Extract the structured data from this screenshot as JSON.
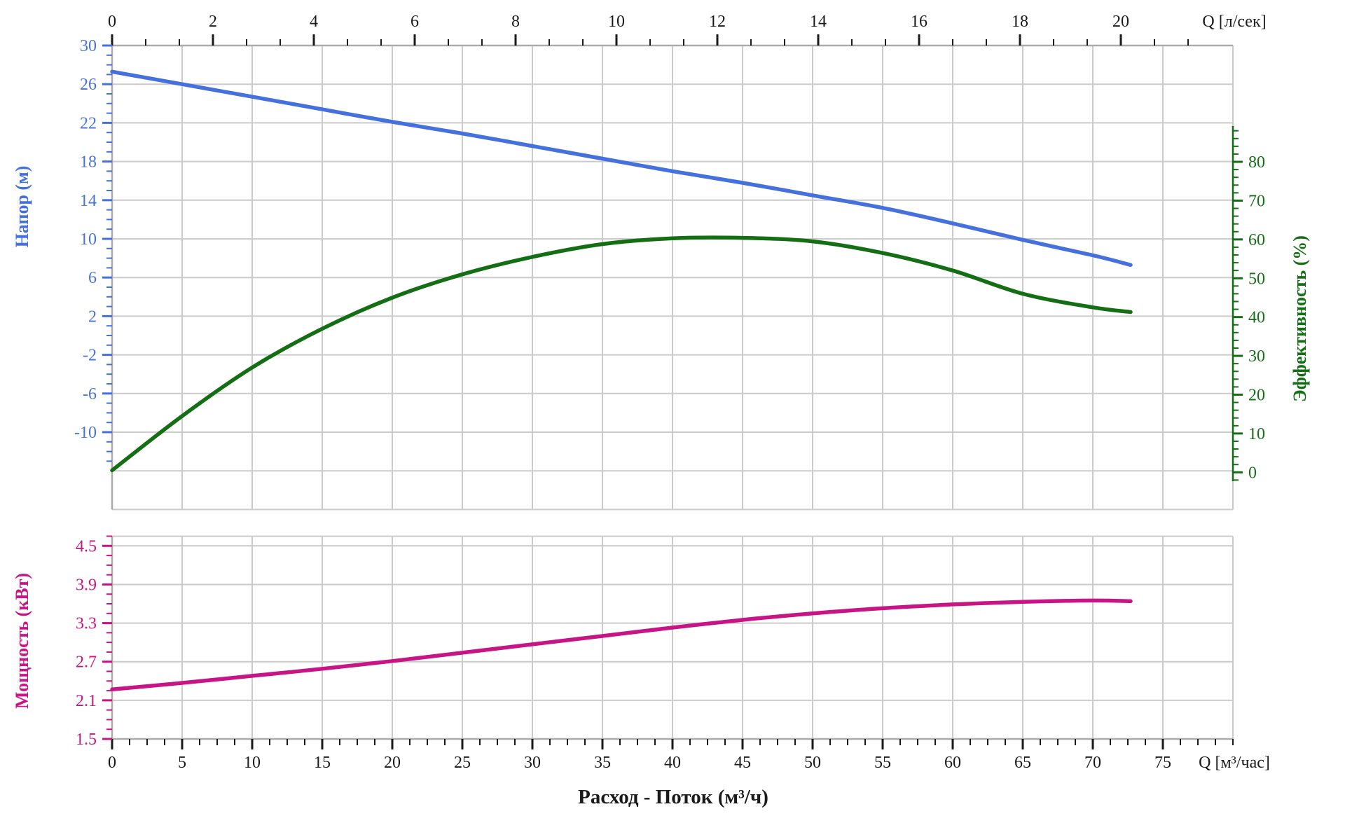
{
  "chart_data": {
    "type": "line",
    "title": "",
    "grid": "on",
    "legend": "none",
    "colors": {
      "head": "#4571DE",
      "efficiency": "#146E14",
      "power": "#C71585",
      "grid_line": "#CBCBCB",
      "spine": "#ABABAB",
      "axis_text": "#1A1A1A"
    },
    "top_axis": {
      "unit_label": "Q [л/сек]",
      "tick_labels": [
        "0",
        "2",
        "4",
        "6",
        "8",
        "10",
        "12",
        "14",
        "16",
        "18",
        "20"
      ]
    },
    "bottom_axis": {
      "unit_label": "Q [м³/час]",
      "title": "Расход - Поток (м³/ч)",
      "tick_labels": [
        "0",
        "5",
        "10",
        "15",
        "20",
        "25",
        "30",
        "35",
        "40",
        "45",
        "50",
        "55",
        "60",
        "65",
        "70",
        "75"
      ],
      "range": [
        0,
        80
      ]
    },
    "head_axis": {
      "title": "Напор (м)",
      "tick_labels": [
        "30",
        "26",
        "22",
        "18",
        "14",
        "10",
        "6",
        "2",
        "-2",
        "-6",
        "-10"
      ],
      "range": [
        -18,
        30
      ]
    },
    "efficiency_axis": {
      "title": "Эффективность (%)",
      "tick_labels": [
        "80",
        "70",
        "60",
        "50",
        "40",
        "30",
        "20",
        "10",
        "0"
      ],
      "range": [
        0,
        80
      ]
    },
    "power_axis": {
      "title": "Мощность (кВт)",
      "tick_labels": [
        "4.5",
        "3.9",
        "3.3",
        "2.7",
        "2.1",
        "1.5"
      ],
      "range": [
        1.5,
        4.65
      ]
    },
    "series": [
      {
        "name": "Напор",
        "axis": "head",
        "x_m3h": [
          0,
          5,
          10,
          15,
          20,
          25,
          30,
          35,
          40,
          45,
          50,
          55,
          60,
          65,
          70,
          72.7
        ],
        "y_m": [
          27.3,
          26.0,
          24.7,
          23.4,
          22.1,
          20.9,
          19.6,
          18.3,
          17.0,
          15.8,
          14.5,
          13.2,
          11.6,
          9.9,
          8.3,
          7.3
        ]
      },
      {
        "name": "Эффективность",
        "axis": "efficiency",
        "x_m3h": [
          0,
          5,
          10,
          15,
          20,
          25,
          30,
          35,
          40,
          45,
          50,
          55,
          60,
          65,
          70,
          72.7
        ],
        "y_pct": [
          0.5,
          14.5,
          27,
          37,
          45,
          51,
          55.5,
          58.8,
          60.3,
          60.4,
          59.5,
          56.5,
          52,
          46,
          42.5,
          41.3
        ]
      },
      {
        "name": "Мощность",
        "axis": "power",
        "x_m3h": [
          0,
          5,
          10,
          15,
          20,
          25,
          30,
          35,
          40,
          45,
          50,
          55,
          60,
          65,
          70,
          72.7
        ],
        "y_kw": [
          2.27,
          2.37,
          2.48,
          2.59,
          2.71,
          2.84,
          2.97,
          3.1,
          3.23,
          3.35,
          3.45,
          3.53,
          3.59,
          3.63,
          3.65,
          3.64
        ]
      }
    ]
  }
}
